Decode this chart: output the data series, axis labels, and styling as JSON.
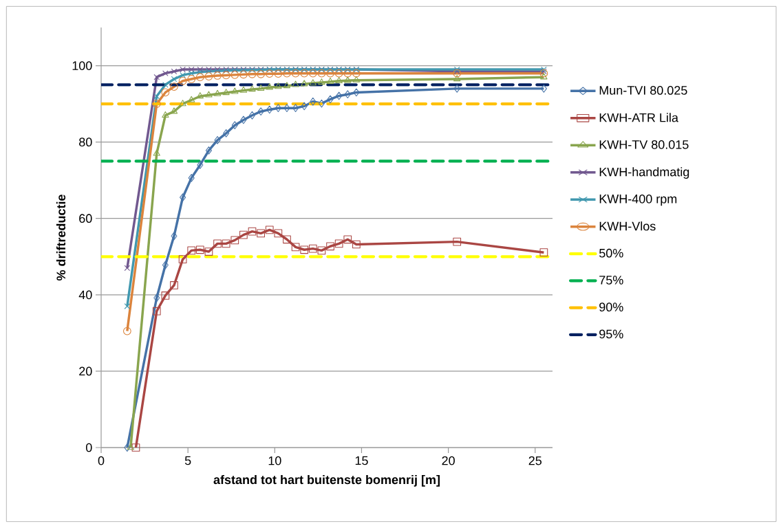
{
  "chart_data": {
    "type": "line",
    "xlabel": "afstand tot hart buitenste bomenrij [m]",
    "ylabel": "% driftreductie",
    "x": [
      1.5,
      3.2,
      3.7,
      4.2,
      4.7,
      5.2,
      5.7,
      6.2,
      6.7,
      7.2,
      7.7,
      8.2,
      8.7,
      9.2,
      9.7,
      10.2,
      10.7,
      11.2,
      11.7,
      12.2,
      12.7,
      13.2,
      13.7,
      14.2,
      14.7,
      20.5,
      25.5
    ],
    "xlim": [
      0,
      26
    ],
    "ylim": [
      0,
      110
    ],
    "xticks": [
      0,
      5,
      10,
      15,
      20,
      25
    ],
    "yticks": [
      0,
      20,
      40,
      60,
      80,
      100
    ],
    "grid": "y",
    "legend": "right",
    "line_style": "solid",
    "series": [
      {
        "name": "Mun-TVI 80.025",
        "color": "#4572a7",
        "marker": "diamond",
        "values": [
          0,
          39.2,
          47.8,
          55.4,
          65.5,
          70.6,
          74,
          77.8,
          80.5,
          82.3,
          84.4,
          85.8,
          87,
          88,
          88.5,
          88.9,
          88.9,
          88.9,
          89.4,
          90.6,
          90.1,
          91.2,
          92.1,
          92.5,
          93,
          94,
          94
        ]
      },
      {
        "name": "KWH-ATR Lila",
        "color": "#aa4643",
        "marker": "square",
        "x": [
          2.0,
          3.2,
          3.7,
          4.2,
          4.7,
          5.2,
          5.7,
          6.2,
          6.7,
          7.2,
          7.7,
          8.2,
          8.7,
          9.2,
          9.7,
          10.2,
          10.7,
          11.2,
          11.7,
          12.2,
          12.7,
          13.2,
          13.7,
          14.2,
          14.7,
          20.5,
          25.5
        ],
        "values": [
          0,
          35.7,
          39.8,
          42.5,
          49.3,
          51.6,
          51.8,
          51.3,
          53.4,
          53.4,
          54.3,
          55.7,
          56.6,
          56.1,
          57,
          56.1,
          54.5,
          52.5,
          51.8,
          52.1,
          51.6,
          52.7,
          53.4,
          54.5,
          53.2,
          53.9,
          51.1
        ]
      },
      {
        "name": "KWH-TV 80.015",
        "color": "#89a54e",
        "marker": "triangle",
        "x": [
          1.7,
          3.2,
          3.7,
          4.2,
          4.7,
          5.2,
          5.7,
          6.2,
          6.7,
          7.2,
          7.7,
          8.2,
          8.7,
          9.2,
          9.7,
          10.2,
          10.7,
          11.2,
          11.7,
          12.2,
          12.7,
          13.2,
          13.7,
          14.2,
          14.7,
          20.5,
          25.5
        ],
        "values": [
          0,
          77,
          87,
          88,
          90,
          91,
          92,
          92.3,
          92.6,
          92.9,
          93.2,
          93.5,
          93.8,
          94,
          94.3,
          94.5,
          94.7,
          95,
          95.2,
          95.4,
          95.6,
          95.8,
          96,
          96.1,
          96.2,
          96.5,
          97
        ]
      },
      {
        "name": "KWH-handmatig",
        "color": "#71588f",
        "marker": "cross",
        "values": [
          47,
          97,
          98,
          98.5,
          99,
          99,
          99,
          99,
          99,
          99,
          99,
          99,
          99,
          99,
          99,
          99,
          99,
          99,
          99,
          99,
          99,
          99,
          99,
          99,
          99,
          98.5,
          98.5
        ]
      },
      {
        "name": "KWH-400 rpm",
        "color": "#4198af",
        "marker": "cross",
        "values": [
          37,
          92,
          95,
          96.5,
          97.5,
          98,
          98.3,
          98.5,
          98.6,
          98.7,
          98.8,
          98.8,
          98.9,
          98.9,
          99,
          99,
          99,
          99,
          99,
          99,
          99,
          99,
          99,
          99,
          99,
          99,
          99
        ]
      },
      {
        "name": "KWH-Vlos",
        "color": "#db843d",
        "marker": "circle",
        "values": [
          30.5,
          90,
          93,
          94.5,
          96,
          96.5,
          97,
          97.2,
          97.4,
          97.5,
          97.6,
          97.7,
          97.8,
          97.8,
          97.9,
          97.9,
          98,
          98,
          98,
          98,
          98,
          98,
          98,
          98,
          98,
          98,
          98
        ]
      },
      {
        "name": "50%",
        "color": "#ffff00",
        "marker": "none",
        "line_style": "dashed",
        "x": [
          0,
          26
        ],
        "values": [
          50,
          50
        ]
      },
      {
        "name": "75%",
        "color": "#00b050",
        "marker": "none",
        "line_style": "dashed",
        "x": [
          0,
          26
        ],
        "values": [
          75,
          75
        ]
      },
      {
        "name": "90%",
        "color": "#ffc000",
        "marker": "none",
        "line_style": "dashed",
        "x": [
          0,
          26
        ],
        "values": [
          90,
          90
        ]
      },
      {
        "name": "95%",
        "color": "#002060",
        "marker": "none",
        "line_style": "dashed",
        "x": [
          0,
          26
        ],
        "values": [
          95,
          95
        ]
      }
    ]
  }
}
